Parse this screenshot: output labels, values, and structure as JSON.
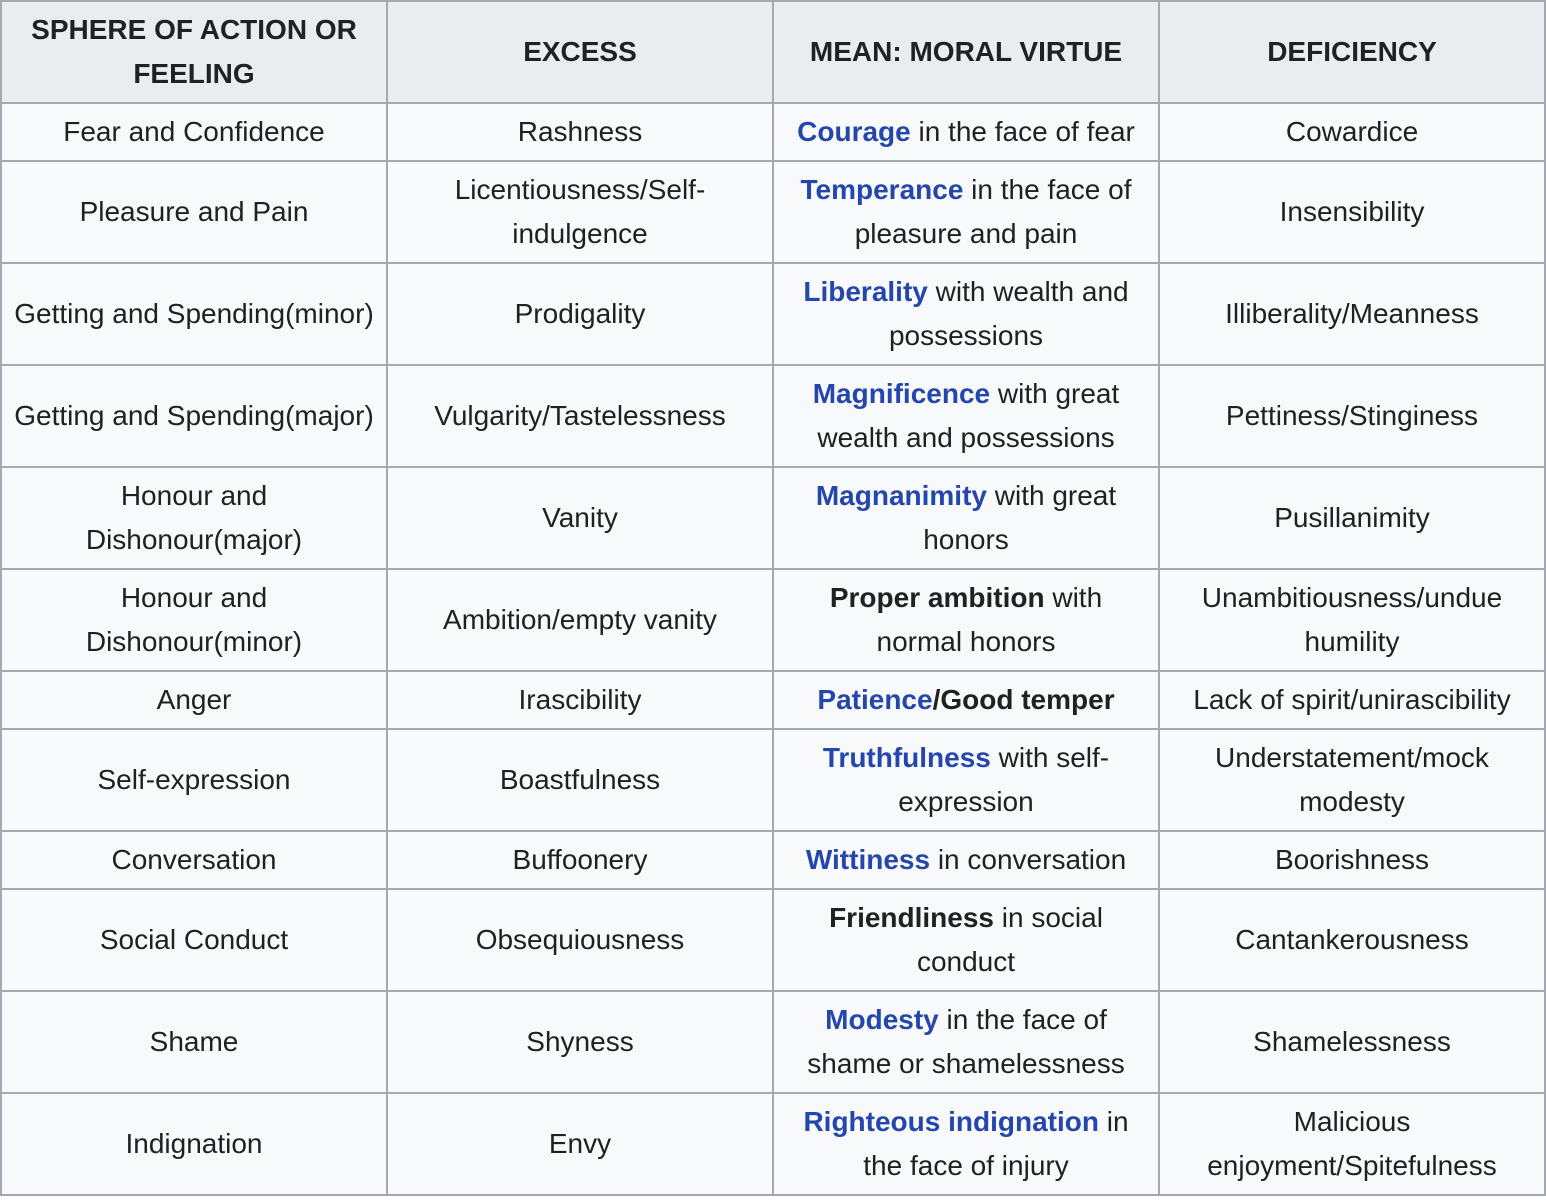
{
  "colors": {
    "link": "#2446ad",
    "header_bg": "#eaecf0",
    "cell_bg": "#f8f9fa",
    "border": "#a2a9b1",
    "text": "#202122"
  },
  "table": {
    "columns": [
      {
        "label": "SPHERE OF ACTION OR FEELING"
      },
      {
        "label": "EXCESS"
      },
      {
        "label": "MEAN: MORAL VIRTUE"
      },
      {
        "label": "DEFICIENCY"
      }
    ],
    "rows": [
      {
        "sphere": "Fear and Confidence",
        "excess": "Rashness",
        "mean": [
          {
            "text": "Courage",
            "style": "link"
          },
          {
            "text": " in the face of fear",
            "style": "plain"
          }
        ],
        "deficiency": "Cowardice"
      },
      {
        "sphere": "Pleasure and Pain",
        "excess": "Licentiousness/Self-indulgence",
        "mean": [
          {
            "text": "Temperance",
            "style": "link"
          },
          {
            "text": " in the face of pleasure and pain",
            "style": "plain"
          }
        ],
        "deficiency": "Insensibility"
      },
      {
        "sphere": "Getting and Spending(minor)",
        "excess": "Prodigality",
        "mean": [
          {
            "text": "Liberality",
            "style": "link"
          },
          {
            "text": " with wealth and possessions",
            "style": "plain"
          }
        ],
        "deficiency": "Illiberality/Meanness"
      },
      {
        "sphere": "Getting and Spending(major)",
        "excess": "Vulgarity/Tastelessness",
        "mean": [
          {
            "text": "Magnificence",
            "style": "link"
          },
          {
            "text": " with great wealth and possessions",
            "style": "plain"
          }
        ],
        "deficiency": "Pettiness/Stinginess"
      },
      {
        "sphere": "Honour and Dishonour(major)",
        "excess": "Vanity",
        "mean": [
          {
            "text": "Magnanimity",
            "style": "link"
          },
          {
            "text": " with great honors",
            "style": "plain"
          }
        ],
        "deficiency": "Pusillanimity"
      },
      {
        "sphere": "Honour and Dishonour(minor)",
        "excess": "Ambition/empty vanity",
        "mean": [
          {
            "text": "Proper ambition",
            "style": "bold"
          },
          {
            "text": " with normal honors",
            "style": "plain"
          }
        ],
        "deficiency": "Unambitiousness/undue humility"
      },
      {
        "sphere": "Anger",
        "excess": "Irascibility",
        "mean": [
          {
            "text": "Patience",
            "style": "link"
          },
          {
            "text": "/Good temper",
            "style": "bold"
          }
        ],
        "deficiency": "Lack of spirit/unirascibility"
      },
      {
        "sphere": "Self-expression",
        "excess": "Boastfulness",
        "mean": [
          {
            "text": "Truthfulness",
            "style": "link"
          },
          {
            "text": " with self-expression",
            "style": "plain"
          }
        ],
        "deficiency": "Understatement/mock modesty"
      },
      {
        "sphere": "Conversation",
        "excess": "Buffoonery",
        "mean": [
          {
            "text": "Wittiness",
            "style": "link"
          },
          {
            "text": " in conversation",
            "style": "plain"
          }
        ],
        "deficiency": "Boorishness"
      },
      {
        "sphere": "Social Conduct",
        "excess": "Obsequiousness",
        "mean": [
          {
            "text": "Friendliness",
            "style": "bold"
          },
          {
            "text": " in social conduct",
            "style": "plain"
          }
        ],
        "deficiency": "Cantankerousness"
      },
      {
        "sphere": "Shame",
        "excess": "Shyness",
        "mean": [
          {
            "text": "Modesty",
            "style": "link"
          },
          {
            "text": " in the face of shame or shamelessness",
            "style": "plain"
          }
        ],
        "deficiency": "Shamelessness"
      },
      {
        "sphere": "Indignation",
        "excess": "Envy",
        "mean": [
          {
            "text": "Righteous indignation",
            "style": "link"
          },
          {
            "text": " in the face of injury",
            "style": "plain"
          }
        ],
        "deficiency": "Malicious enjoyment/Spitefulness"
      }
    ]
  }
}
